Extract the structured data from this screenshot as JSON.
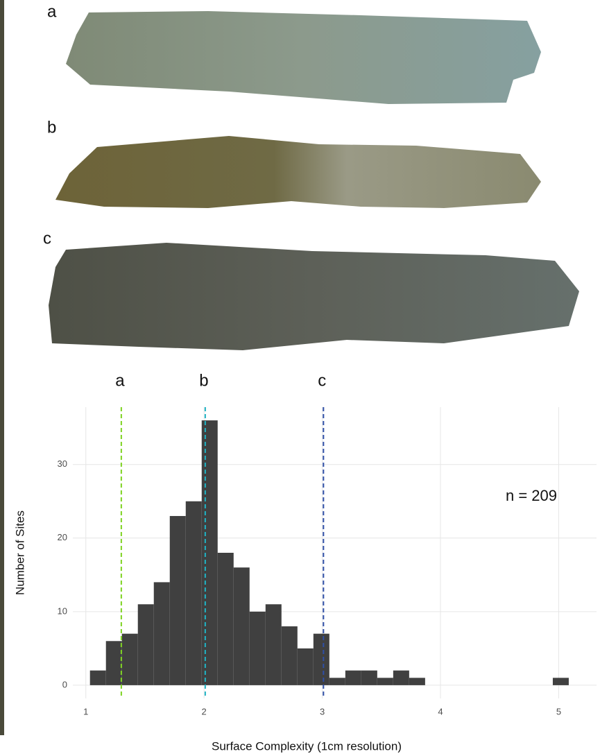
{
  "panels": [
    {
      "label": "a"
    },
    {
      "label": "b"
    },
    {
      "label": "c"
    }
  ],
  "chart_data": {
    "type": "histogram",
    "x_label": "Surface Complexity (1cm resolution)",
    "y_label": "Number of Sites",
    "annotation": "n = 209",
    "bins": [
      1.035,
      1.17,
      1.305,
      1.44,
      1.575,
      1.71,
      1.845,
      1.98,
      2.115,
      2.25,
      2.385,
      2.52,
      2.655,
      2.79,
      2.925,
      3.06,
      3.195,
      3.33,
      3.465,
      3.6,
      3.735,
      3.87,
      4.005,
      4.14,
      4.275,
      4.41,
      4.545,
      4.68,
      4.815,
      4.95,
      5.085
    ],
    "values": [
      2,
      6,
      7,
      11,
      14,
      23,
      25,
      36,
      18,
      16,
      10,
      11,
      8,
      5,
      7,
      1,
      2,
      2,
      1,
      2,
      1,
      0,
      0,
      0,
      0,
      0,
      0,
      0,
      0,
      1
    ],
    "color": "#404040",
    "reference_lines": [
      {
        "label": "a",
        "value": 1.3,
        "color": "#7ed321"
      },
      {
        "label": "b",
        "value": 2.01,
        "color": "#1fb3c4"
      },
      {
        "label": "c",
        "value": 3.01,
        "color": "#2f4fa6"
      }
    ],
    "xlim": [
      0.89,
      5.32
    ],
    "ylim": [
      -1.8,
      37.8
    ],
    "xticks": [
      1,
      2,
      3,
      4,
      5
    ],
    "yticks": [
      0,
      10,
      20,
      30
    ],
    "grid": true
  }
}
